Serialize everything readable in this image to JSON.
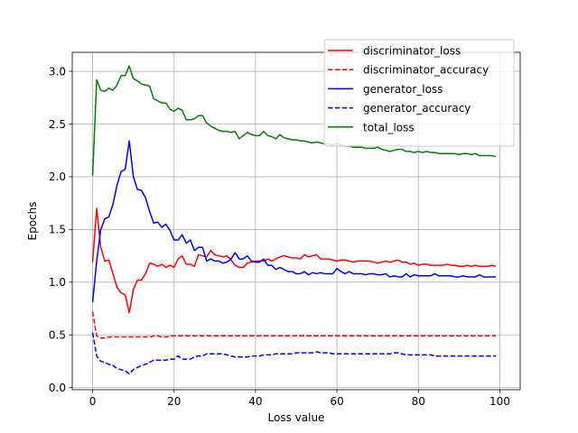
{
  "chart_data": {
    "type": "line",
    "title": "",
    "xlabel": "Loss value",
    "ylabel": "Epochs",
    "xlim": [
      -5,
      105
    ],
    "ylim": [
      -0.02,
      3.18
    ],
    "xticks": [
      0,
      20,
      40,
      60,
      80,
      100
    ],
    "yticks": [
      0.0,
      0.5,
      1.0,
      1.5,
      2.0,
      2.5,
      3.0
    ],
    "xtick_labels": [
      "0",
      "20",
      "40",
      "60",
      "80",
      "100"
    ],
    "ytick_labels": [
      "0.0",
      "0.5",
      "1.0",
      "1.5",
      "2.0",
      "2.5",
      "3.0"
    ],
    "grid": true,
    "legend_position": "top-right",
    "x_start": 0,
    "series": [
      {
        "name": "discriminator_loss",
        "color": "#ff0000",
        "dash": "solid",
        "values": [
          1.19,
          1.7,
          1.33,
          1.2,
          1.21,
          1.08,
          0.95,
          0.9,
          0.88,
          0.71,
          0.93,
          1.02,
          1.02,
          1.08,
          1.18,
          1.17,
          1.15,
          1.17,
          1.14,
          1.16,
          1.14,
          1.22,
          1.25,
          1.17,
          1.17,
          1.15,
          1.26,
          1.25,
          1.24,
          1.3,
          1.26,
          1.25,
          1.24,
          1.25,
          1.21,
          1.16,
          1.14,
          1.14,
          1.18,
          1.19,
          1.2,
          1.2,
          1.2,
          1.22,
          1.2,
          1.22,
          1.24,
          1.25,
          1.24,
          1.23,
          1.23,
          1.22,
          1.26,
          1.24,
          1.25,
          1.26,
          1.22,
          1.22,
          1.22,
          1.21,
          1.2,
          1.21,
          1.21,
          1.2,
          1.19,
          1.2,
          1.2,
          1.2,
          1.2,
          1.19,
          1.18,
          1.19,
          1.2,
          1.19,
          1.2,
          1.21,
          1.19,
          1.19,
          1.17,
          1.18,
          1.16,
          1.17,
          1.17,
          1.16,
          1.16,
          1.16,
          1.16,
          1.17,
          1.16,
          1.16,
          1.15,
          1.15,
          1.16,
          1.15,
          1.16,
          1.15,
          1.15,
          1.15,
          1.16,
          1.15
        ]
      },
      {
        "name": "discriminator_accuracy",
        "color": "#ff0000",
        "dash": "dashed",
        "values": [
          0.72,
          0.49,
          0.47,
          0.47,
          0.48,
          0.48,
          0.48,
          0.48,
          0.48,
          0.48,
          0.48,
          0.48,
          0.48,
          0.48,
          0.48,
          0.49,
          0.49,
          0.48,
          0.48,
          0.49,
          0.49,
          0.49,
          0.49,
          0.49,
          0.49,
          0.49,
          0.49,
          0.49,
          0.49,
          0.49,
          0.49,
          0.49,
          0.49,
          0.49,
          0.49,
          0.49,
          0.49,
          0.49,
          0.49,
          0.49,
          0.49,
          0.49,
          0.49,
          0.49,
          0.49,
          0.49,
          0.49,
          0.49,
          0.49,
          0.49,
          0.49,
          0.49,
          0.49,
          0.49,
          0.49,
          0.49,
          0.49,
          0.49,
          0.49,
          0.49,
          0.49,
          0.49,
          0.49,
          0.49,
          0.49,
          0.49,
          0.49,
          0.49,
          0.49,
          0.49,
          0.49,
          0.49,
          0.49,
          0.49,
          0.49,
          0.49,
          0.49,
          0.49,
          0.49,
          0.49,
          0.49,
          0.49,
          0.49,
          0.49,
          0.49,
          0.49,
          0.49,
          0.49,
          0.49,
          0.49,
          0.49,
          0.49,
          0.49,
          0.49,
          0.49,
          0.49,
          0.49,
          0.49,
          0.49,
          0.49
        ]
      },
      {
        "name": "generator_loss",
        "color": "#0000ff",
        "dash": "solid",
        "values": [
          0.81,
          1.2,
          1.5,
          1.6,
          1.62,
          1.74,
          1.92,
          2.05,
          2.07,
          2.34,
          2.0,
          1.88,
          1.87,
          1.8,
          1.67,
          1.56,
          1.57,
          1.52,
          1.55,
          1.49,
          1.4,
          1.4,
          1.45,
          1.37,
          1.4,
          1.3,
          1.33,
          1.33,
          1.2,
          1.22,
          1.2,
          1.2,
          1.18,
          1.19,
          1.22,
          1.28,
          1.22,
          1.22,
          1.25,
          1.2,
          1.19,
          1.19,
          1.22,
          1.16,
          1.16,
          1.12,
          1.14,
          1.12,
          1.1,
          1.1,
          1.08,
          1.08,
          1.1,
          1.07,
          1.09,
          1.08,
          1.09,
          1.08,
          1.08,
          1.08,
          1.13,
          1.1,
          1.08,
          1.1,
          1.08,
          1.08,
          1.08,
          1.07,
          1.08,
          1.08,
          1.07,
          1.07,
          1.08,
          1.05,
          1.06,
          1.05,
          1.05,
          1.08,
          1.05,
          1.07,
          1.06,
          1.06,
          1.06,
          1.06,
          1.08,
          1.06,
          1.06,
          1.06,
          1.06,
          1.05,
          1.05,
          1.06,
          1.05,
          1.05,
          1.05,
          1.07,
          1.05,
          1.05,
          1.05,
          1.05
        ]
      },
      {
        "name": "generator_accuracy",
        "color": "#0000ff",
        "dash": "dashed",
        "values": [
          0.52,
          0.3,
          0.25,
          0.24,
          0.22,
          0.21,
          0.18,
          0.17,
          0.16,
          0.13,
          0.17,
          0.19,
          0.21,
          0.22,
          0.24,
          0.26,
          0.26,
          0.26,
          0.26,
          0.27,
          0.27,
          0.3,
          0.27,
          0.27,
          0.27,
          0.29,
          0.3,
          0.3,
          0.32,
          0.32,
          0.32,
          0.32,
          0.32,
          0.31,
          0.3,
          0.29,
          0.29,
          0.29,
          0.29,
          0.3,
          0.3,
          0.3,
          0.31,
          0.31,
          0.31,
          0.32,
          0.32,
          0.32,
          0.32,
          0.32,
          0.33,
          0.33,
          0.33,
          0.33,
          0.33,
          0.34,
          0.33,
          0.33,
          0.33,
          0.32,
          0.32,
          0.32,
          0.32,
          0.32,
          0.32,
          0.32,
          0.32,
          0.32,
          0.32,
          0.32,
          0.32,
          0.32,
          0.32,
          0.32,
          0.33,
          0.33,
          0.32,
          0.31,
          0.31,
          0.31,
          0.31,
          0.31,
          0.31,
          0.31,
          0.3,
          0.3,
          0.3,
          0.3,
          0.3,
          0.3,
          0.3,
          0.3,
          0.3,
          0.3,
          0.3,
          0.3,
          0.3,
          0.3,
          0.3,
          0.3
        ]
      },
      {
        "name": "total_loss",
        "color": "#008000",
        "dash": "solid",
        "values": [
          2.01,
          2.92,
          2.82,
          2.81,
          2.84,
          2.82,
          2.87,
          2.96,
          2.96,
          3.05,
          2.93,
          2.91,
          2.88,
          2.87,
          2.86,
          2.74,
          2.72,
          2.7,
          2.7,
          2.64,
          2.62,
          2.65,
          2.63,
          2.54,
          2.54,
          2.55,
          2.58,
          2.58,
          2.51,
          2.48,
          2.46,
          2.44,
          2.43,
          2.43,
          2.42,
          2.43,
          2.36,
          2.39,
          2.42,
          2.4,
          2.39,
          2.39,
          2.43,
          2.39,
          2.38,
          2.36,
          2.4,
          2.37,
          2.36,
          2.35,
          2.35,
          2.34,
          2.34,
          2.33,
          2.32,
          2.33,
          2.32,
          2.31,
          2.31,
          2.3,
          2.32,
          2.3,
          2.29,
          2.29,
          2.28,
          2.28,
          2.28,
          2.27,
          2.27,
          2.27,
          2.28,
          2.26,
          2.25,
          2.24,
          2.25,
          2.26,
          2.26,
          2.24,
          2.24,
          2.23,
          2.24,
          2.23,
          2.24,
          2.23,
          2.23,
          2.22,
          2.22,
          2.22,
          2.22,
          2.22,
          2.21,
          2.22,
          2.22,
          2.21,
          2.22,
          2.2,
          2.2,
          2.2,
          2.2,
          2.19
        ]
      }
    ]
  }
}
